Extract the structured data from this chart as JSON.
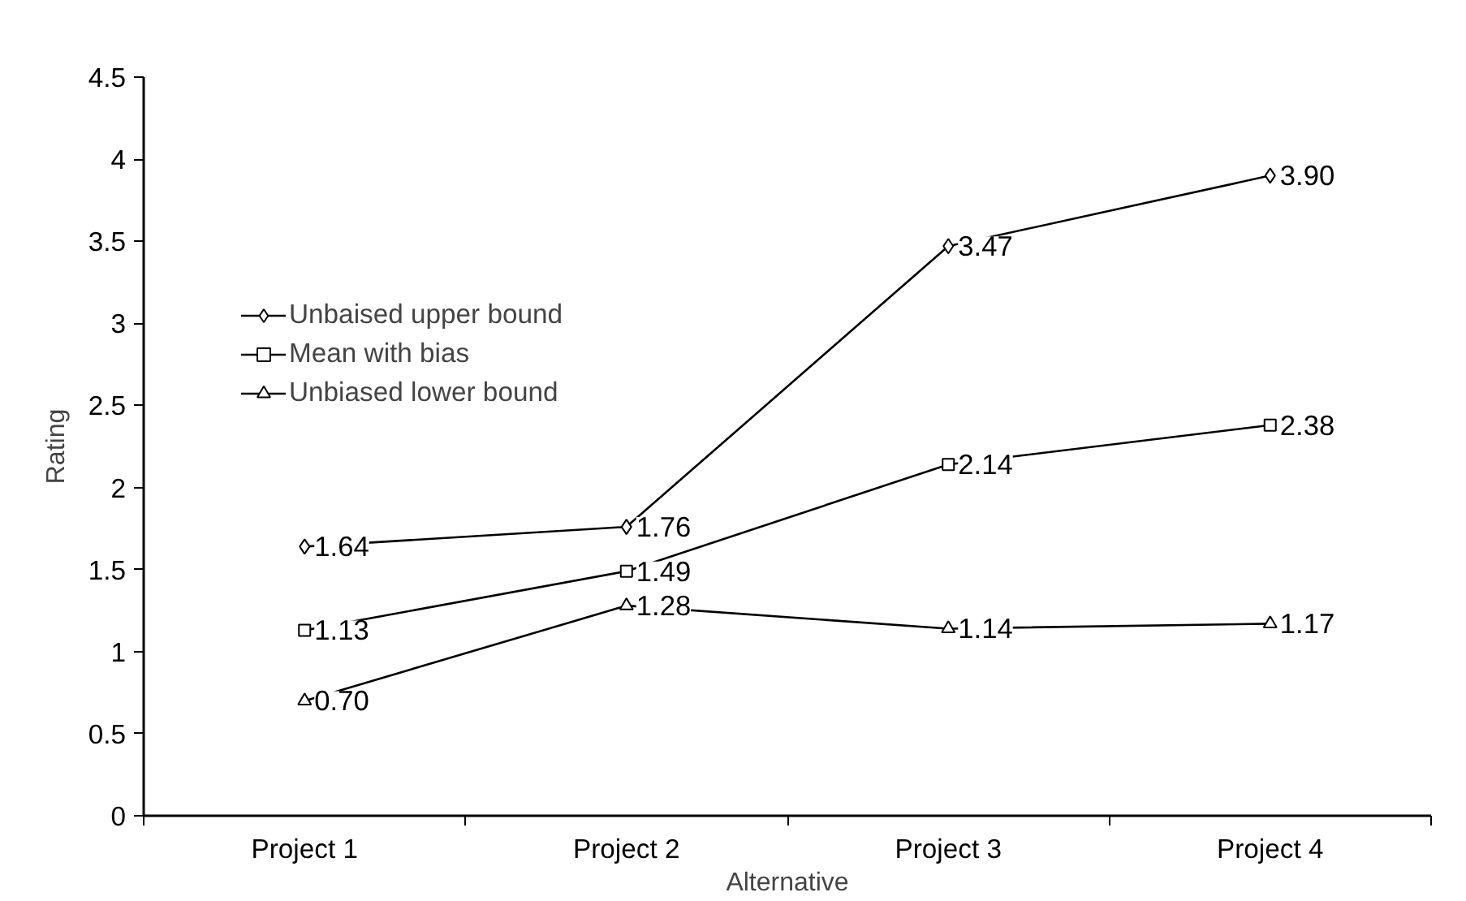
{
  "chart_data": {
    "type": "line",
    "xlabel": "Alternative",
    "ylabel": "Rating",
    "categories": [
      "Project 1",
      "Project 2",
      "Project 3",
      "Project 4"
    ],
    "ylim": [
      0,
      4.5
    ],
    "yticks": [
      0,
      0.5,
      1,
      1.5,
      2,
      2.5,
      3,
      3.5,
      4,
      4.5
    ],
    "series": [
      {
        "name": "Unbaised upper bound",
        "color": "#000000",
        "marker": "diamond",
        "values": [
          1.64,
          1.76,
          3.47,
          3.9
        ],
        "value_labels": [
          "1.64",
          "1.76",
          "3.47",
          "3.90"
        ]
      },
      {
        "name": "Mean with bias",
        "color": "#000000",
        "marker": "square",
        "values": [
          1.13,
          1.49,
          2.14,
          2.38
        ],
        "value_labels": [
          "1.13",
          "1.49",
          "2.14",
          "2.38"
        ]
      },
      {
        "name": "Unbiased lower bound",
        "color": "#000000",
        "marker": "triangle",
        "values": [
          0.7,
          1.28,
          1.14,
          1.17
        ],
        "value_labels": [
          "0.70",
          "1.28",
          "1.14",
          "1.17"
        ]
      }
    ],
    "grid": false,
    "legend": "top left",
    "line_style": "solid"
  }
}
